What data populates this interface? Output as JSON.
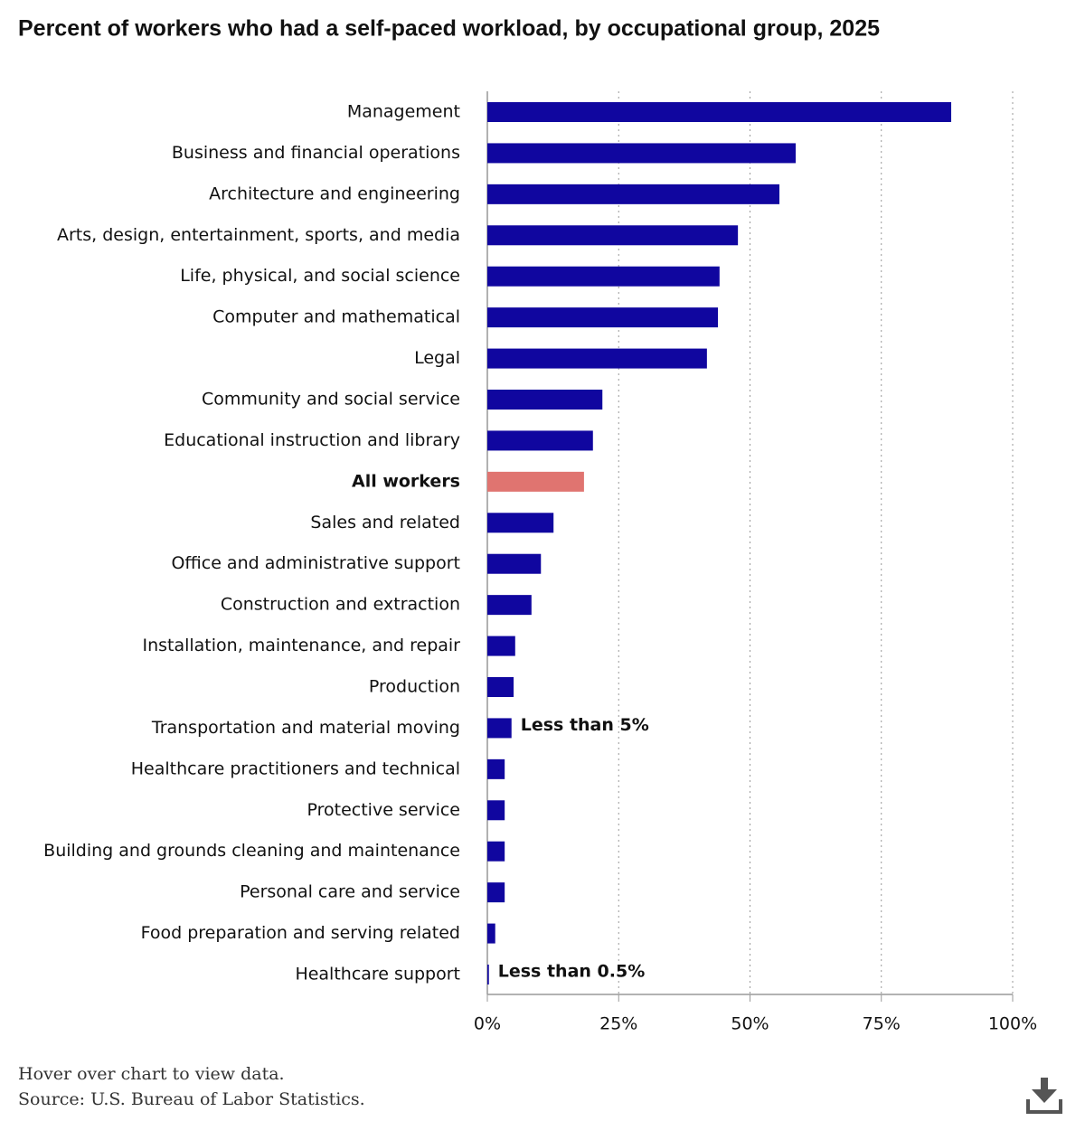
{
  "chart_data": {
    "type": "hbar",
    "title": "Percent of workers who had a self-paced workload, by occupational group, 2025",
    "categories": [
      "Management",
      "Business and financial operations",
      "Architecture and engineering",
      "Arts, design, entertainment, sports, and media",
      "Life, physical, and social science",
      "Computer and mathematical",
      "Legal",
      "Community and social service",
      "Educational instruction and library",
      "All workers",
      "Sales and related",
      "Office and administrative support",
      "Construction and extraction",
      "Installation, maintenance, and repair",
      "Production",
      "Transportation and material moving",
      "Healthcare practitioners and technical",
      "Protective service",
      "Building and grounds cleaning and maintenance",
      "Personal care and service",
      "Food preparation and serving related",
      "Healthcare support"
    ],
    "values": [
      88.3,
      58.7,
      55.6,
      47.7,
      44.2,
      43.9,
      41.8,
      21.9,
      20.1,
      18.4,
      12.6,
      10.2,
      8.4,
      5.3,
      5.0,
      4.6,
      3.3,
      3.3,
      3.3,
      3.3,
      1.5,
      0.3
    ],
    "color": "#10069f",
    "highlight": {
      "category": "All workers",
      "color": "#e07470"
    },
    "annotations": [
      {
        "category": "Transportation and material moving",
        "text": "Less than 5%"
      },
      {
        "category": "Healthcare support",
        "text": "Less than 0.5%"
      }
    ],
    "xlim": [
      0,
      100
    ],
    "xticks": [
      {
        "value": 0,
        "label": "0%"
      },
      {
        "value": 25,
        "label": "25%"
      },
      {
        "value": 50,
        "label": "50%"
      },
      {
        "value": 75,
        "label": "75%"
      },
      {
        "value": 100,
        "label": "100%"
      }
    ],
    "grid": true,
    "notes": [
      "Hover over chart to view data.",
      "Source: U.S. Bureau of Labor Statistics."
    ]
  }
}
